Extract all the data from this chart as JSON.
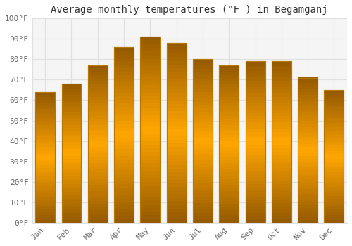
{
  "title": "Average monthly temperatures (°F ) in Begamganj",
  "months": [
    "Jan",
    "Feb",
    "Mar",
    "Apr",
    "May",
    "Jun",
    "Jul",
    "Aug",
    "Sep",
    "Oct",
    "Nov",
    "Dec"
  ],
  "values": [
    64,
    68,
    77,
    86,
    91,
    88,
    80,
    77,
    79,
    79,
    71,
    65
  ],
  "bar_color_left": "#E8960A",
  "bar_color_center": "#FFD050",
  "bar_color_right": "#E8960A",
  "bar_edge_color": "#B87800",
  "background_color": "#FFFFFF",
  "plot_bg_color": "#F5F5F5",
  "grid_color": "#E0E0E0",
  "ylim": [
    0,
    100
  ],
  "yticks": [
    0,
    10,
    20,
    30,
    40,
    50,
    60,
    70,
    80,
    90,
    100
  ],
  "ytick_labels": [
    "0°F",
    "10°F",
    "20°F",
    "30°F",
    "40°F",
    "50°F",
    "60°F",
    "70°F",
    "80°F",
    "90°F",
    "100°F"
  ],
  "title_fontsize": 10,
  "tick_fontsize": 8,
  "font_family": "monospace",
  "bar_width": 0.75
}
